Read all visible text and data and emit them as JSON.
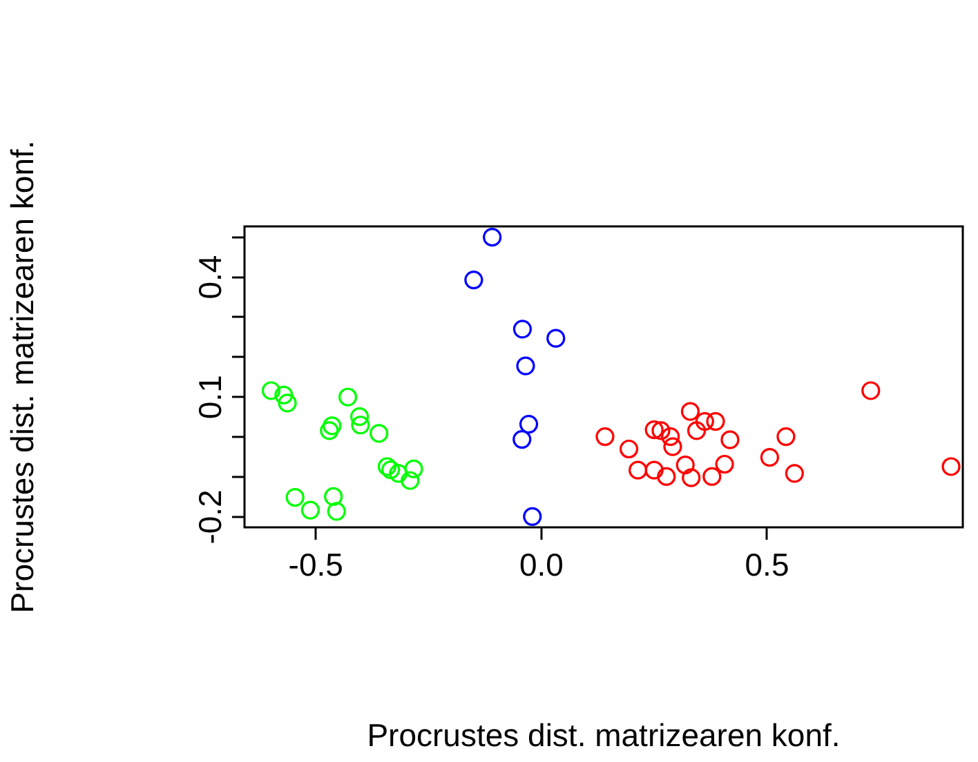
{
  "chart_data": {
    "type": "scatter",
    "xlabel": "Procrustes dist. matrizearen konf.",
    "ylabel": "Procrustes dist. matrizearen konf.",
    "xlim": [
      -0.658,
      0.934
    ],
    "ylim": [
      -0.226,
      0.527
    ],
    "xticks": [
      {
        "value": -0.5,
        "label": "-0.5"
      },
      {
        "value": 0,
        "label": "0.0"
      },
      {
        "value": 0.5,
        "label": "0.5"
      }
    ],
    "yticks": [
      -0.2,
      {
        "value": -0.1,
        "label": null
      },
      {
        "value": 0,
        "label": null
      },
      0.1,
      {
        "value": 0.2,
        "label": null
      },
      {
        "value": 0.3,
        "label": null
      },
      0.4,
      {
        "value": 0.5,
        "label": null
      }
    ],
    "marker": "circle",
    "grid": false,
    "legend": false,
    "series": [
      {
        "color": "#0000ff",
        "x": [
          -0.109,
          -0.15,
          -0.042,
          0.032,
          -0.035,
          -0.028,
          -0.043,
          -0.02
        ],
        "values": [
          0.5,
          0.393,
          0.27,
          0.247,
          0.178,
          0.032,
          -0.006,
          -0.199
        ]
      },
      {
        "color": "#00ff00",
        "x": [
          -0.599,
          -0.571,
          -0.563,
          -0.429,
          -0.403,
          -0.401,
          -0.464,
          -0.47,
          -0.36,
          -0.342,
          -0.334,
          -0.317,
          -0.291,
          -0.283,
          -0.546,
          -0.512,
          -0.461,
          -0.454
        ],
        "values": [
          0.116,
          0.105,
          0.085,
          0.1,
          0.051,
          0.03,
          0.028,
          0.016,
          0.009,
          -0.074,
          -0.082,
          -0.091,
          -0.109,
          -0.08,
          -0.151,
          -0.183,
          -0.149,
          -0.186
        ]
      },
      {
        "color": "#ff0000",
        "x": [
          0.141,
          0.194,
          0.214,
          0.25,
          0.25,
          0.265,
          0.286,
          0.291,
          0.277,
          0.319,
          0.332,
          0.33,
          0.344,
          0.362,
          0.386,
          0.378,
          0.406,
          0.418,
          0.506,
          0.542,
          0.561,
          0.73,
          0.908
        ],
        "values": [
          0.001,
          -0.03,
          -0.083,
          -0.083,
          0.018,
          0.016,
          0.001,
          -0.024,
          -0.099,
          -0.07,
          -0.102,
          0.064,
          0.016,
          0.039,
          0.039,
          -0.099,
          -0.068,
          -0.007,
          -0.051,
          0.001,
          -0.091,
          0.116,
          -0.074
        ]
      }
    ]
  }
}
